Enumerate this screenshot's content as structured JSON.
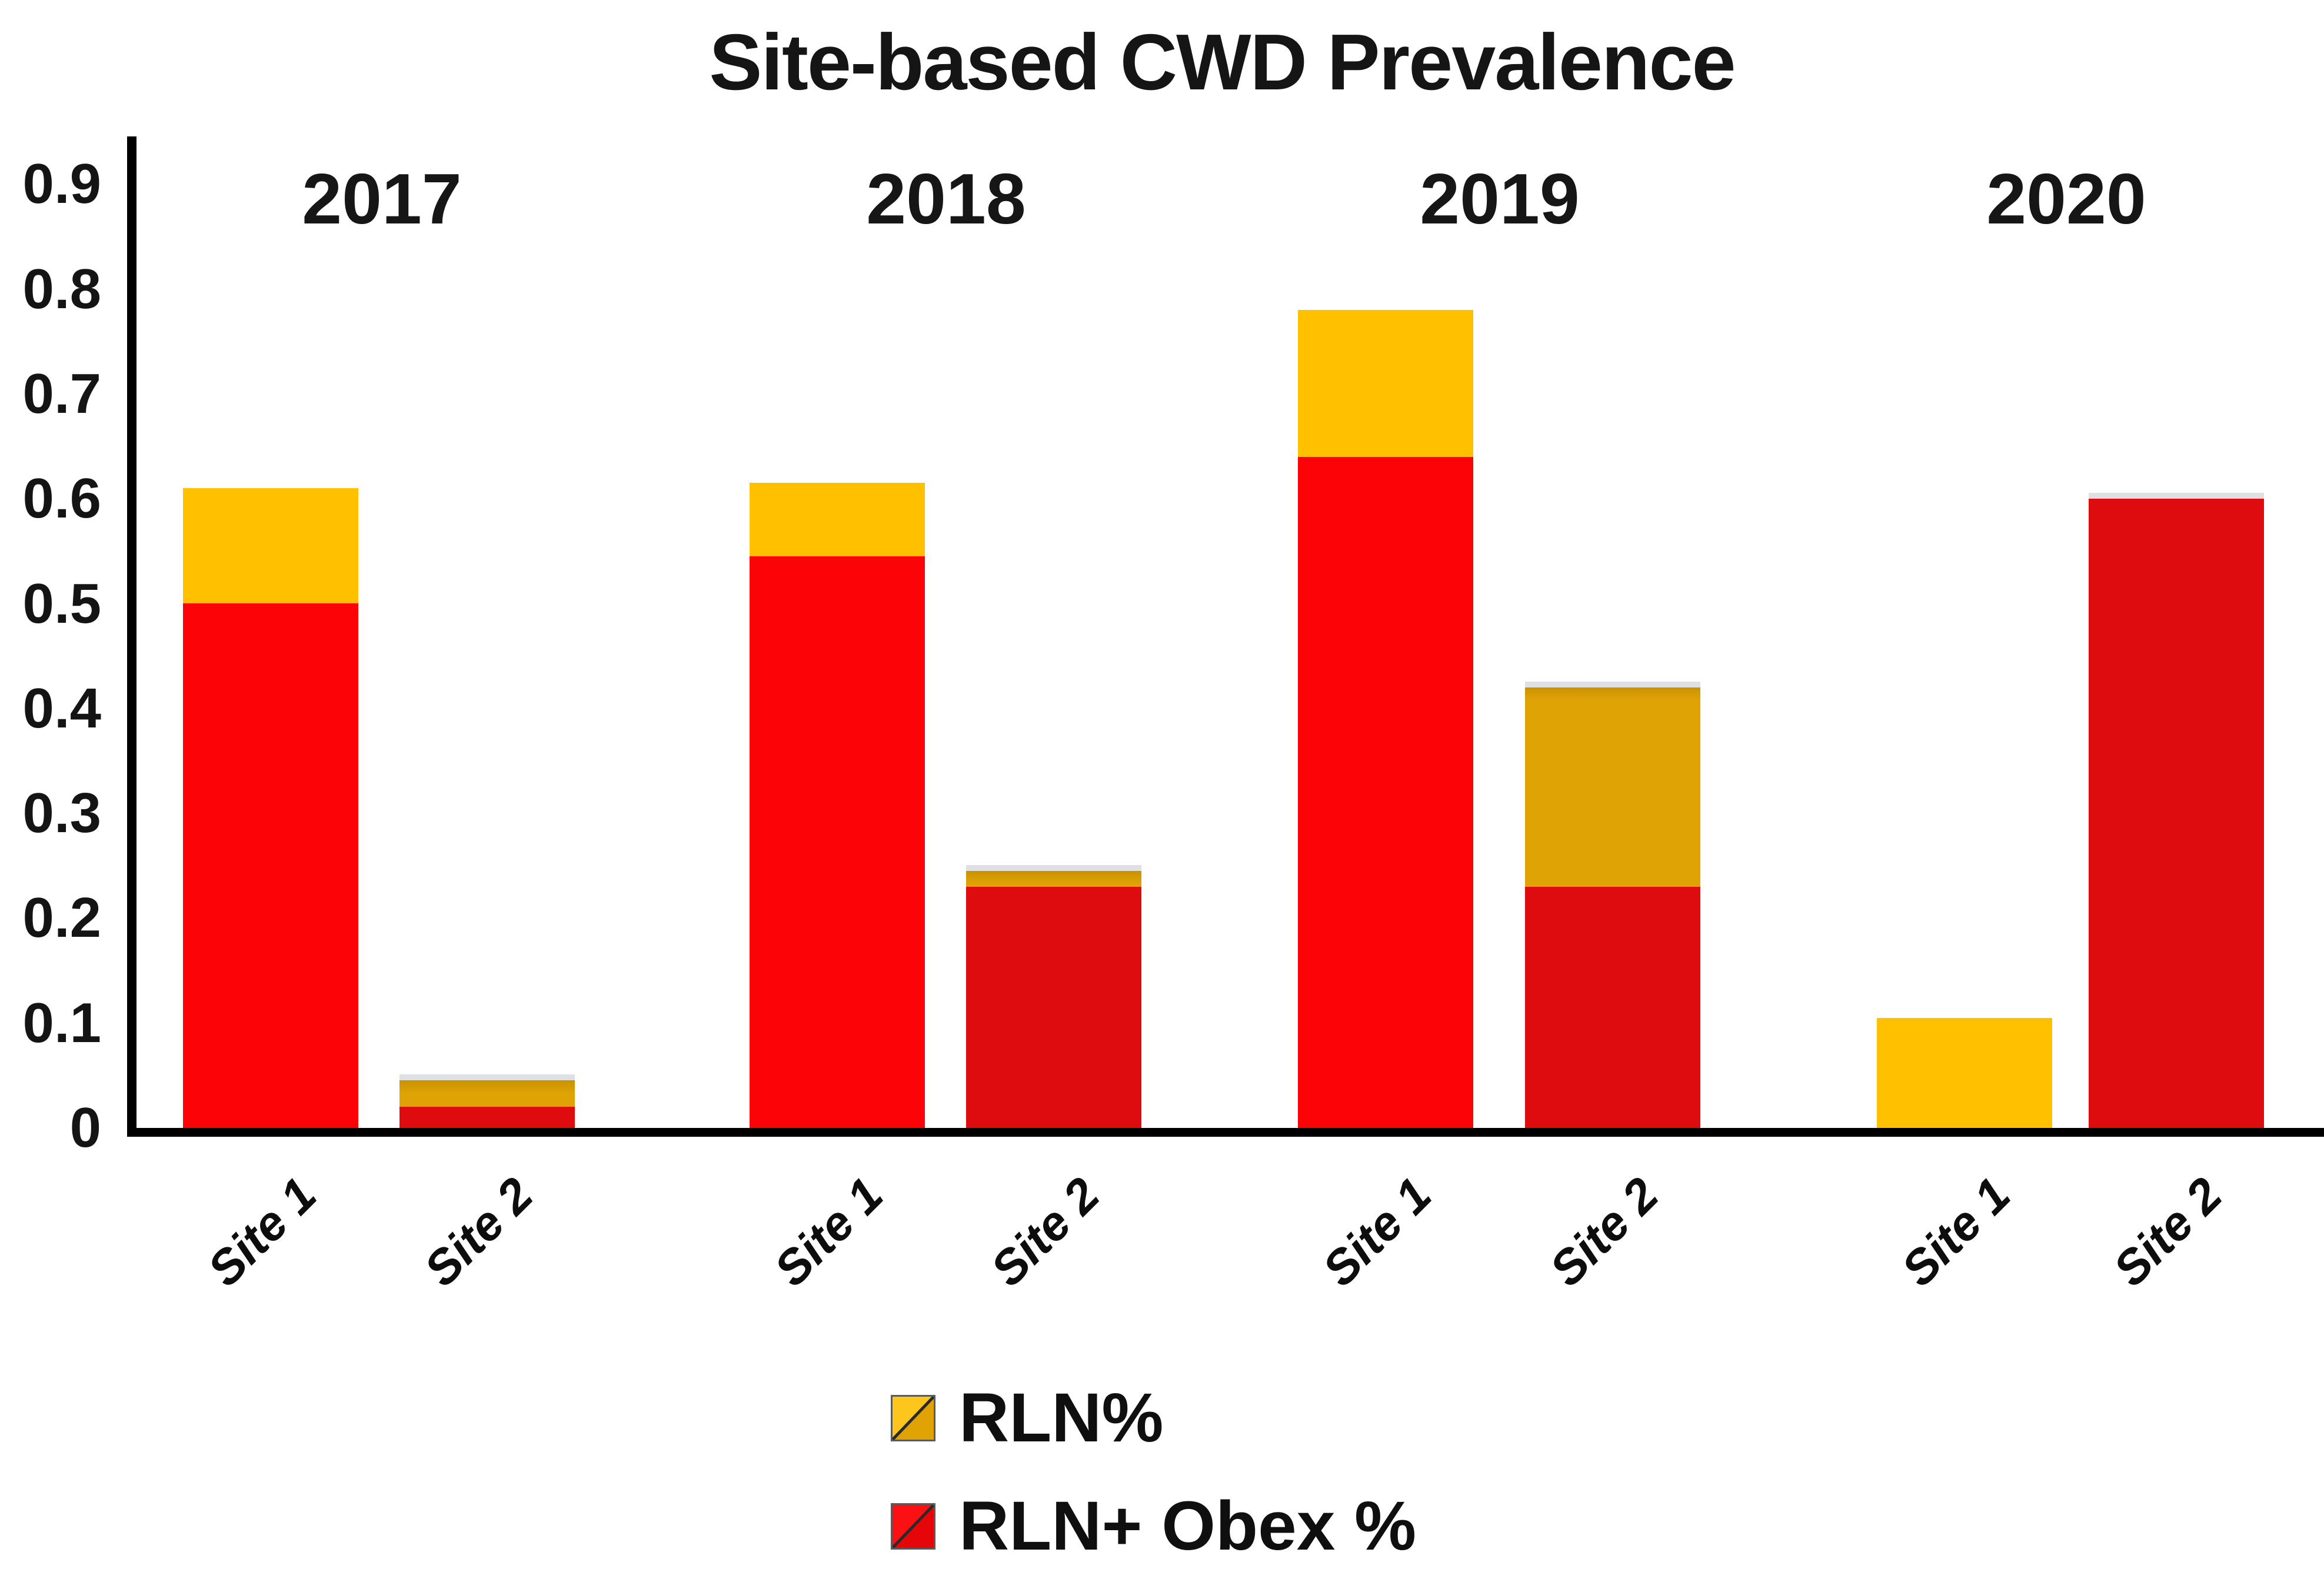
{
  "title": "Site-based CWD Prevalence",
  "legend": {
    "items": [
      {
        "label": "RLN%",
        "swatch_icon": "gold-hatched-square",
        "color": "#DFA306"
      },
      {
        "label": "RLN+ Obex %",
        "swatch_icon": "red-hatched-square",
        "color": "#E8090C"
      }
    ]
  },
  "chart_data": {
    "type": "bar",
    "stacked": true,
    "title": "Site-based CWD Prevalence",
    "xlabel": "",
    "ylabel": "",
    "ylim": [
      0,
      0.9
    ],
    "yticks": [
      "0",
      "0.1",
      "0.2",
      "0.3",
      "0.4",
      "0.5",
      "0.6",
      "0.7",
      "0.8",
      "0.9"
    ],
    "grid": false,
    "legend_position": "bottom",
    "groups": [
      "2017",
      "2018",
      "2019",
      "2020"
    ],
    "categories": [
      "Site 1",
      "Site 2",
      "Site 1",
      "Site 2",
      "Site 1",
      "Site 2",
      "Site 1",
      "Site 2"
    ],
    "series": [
      {
        "name": "RLN+ Obex %",
        "values": [
          0.5,
          0.02,
          0.545,
          0.23,
          0.64,
          0.23,
          0,
          0.6
        ]
      },
      {
        "name": "RLN%",
        "values": [
          0.11,
          0.025,
          0.07,
          0.015,
          0.14,
          0.19,
          0.105,
          0
        ]
      }
    ],
    "totals": [
      0.61,
      0.045,
      0.615,
      0.245,
      0.78,
      0.42,
      0.105,
      0.6
    ]
  },
  "colors": {
    "red_bright": "#FB0307",
    "red_dark": "#DE0B0F",
    "yellow_bright": "#FFC000",
    "gold_dark": "#DFA306",
    "gold_gradient_top": "#C99200",
    "bar_top_cap": "#DFE0E4",
    "axis": "#000000",
    "text": "#111111",
    "background": "#FFFFFF"
  }
}
